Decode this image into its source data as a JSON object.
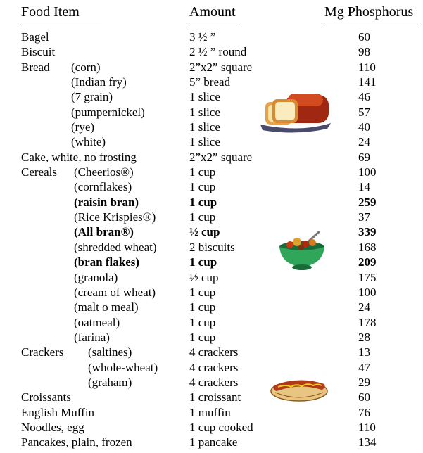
{
  "header": {
    "food": "Food Item",
    "amount": "Amount",
    "phos": "Mg Phosphorus"
  },
  "rows": [
    {
      "food": "Bagel",
      "sub": "",
      "amount": "3 ½ ”",
      "mg": "60",
      "bold": false
    },
    {
      "food": "Biscuit",
      "sub": "",
      "amount": "2 ½ ” round",
      "mg": "98",
      "bold": false
    },
    {
      "food": "Bread",
      "sub": "(corn)",
      "amount": "2”x2” square",
      "mg": "110",
      "bold": false
    },
    {
      "food": "",
      "sub": "(Indian fry)",
      "amount": "5” bread",
      "mg": "141",
      "bold": false
    },
    {
      "food": "",
      "sub": "(7 grain)",
      "amount": "1 slice",
      "mg": "46",
      "bold": false
    },
    {
      "food": "",
      "sub": "(pumpernickel)",
      "amount": "1 slice",
      "mg": "57",
      "bold": false
    },
    {
      "food": "",
      "sub": "(rye)",
      "amount": "1 slice",
      "mg": "40",
      "bold": false
    },
    {
      "food": "",
      "sub": "(white)",
      "amount": "1 slice",
      "mg": "24",
      "bold": false
    },
    {
      "food": "Cake, white, no frosting",
      "sub": "",
      "amount": "2”x2” square",
      "mg": "69",
      "bold": false
    },
    {
      "food": "Cereals",
      "sub": "(Cheerios®)",
      "amount": "1 cup",
      "mg": "100",
      "bold": false
    },
    {
      "food": "",
      "sub": "(cornflakes)",
      "amount": "1 cup",
      "mg": "14",
      "bold": false
    },
    {
      "food": "",
      "sub": "(raisin bran)",
      "amount": "1 cup",
      "mg": "259",
      "bold": true
    },
    {
      "food": "",
      "sub": "(Rice Krispies®)",
      "amount": "1 cup",
      "mg": "37",
      "bold": false
    },
    {
      "food": "",
      "sub": "(All bran®)",
      "amount": "½ cup",
      "mg": "339",
      "bold": true
    },
    {
      "food": "",
      "sub": "(shredded wheat)",
      "amount": "2 biscuits",
      "mg": "168",
      "bold": false
    },
    {
      "food": "",
      "sub": "(bran flakes)",
      "amount": "1 cup",
      "mg": "209",
      "bold": true
    },
    {
      "food": "",
      "sub": "(granola)",
      "amount": "½ cup",
      "mg": "175",
      "bold": false
    },
    {
      "food": "",
      "sub": "(cream of wheat)",
      "amount": "1 cup",
      "mg": "100",
      "bold": false
    },
    {
      "food": "",
      "sub": "(malt o meal)",
      "amount": "1 cup",
      "mg": "24",
      "bold": false
    },
    {
      "food": "",
      "sub": "(oatmeal)",
      "amount": "1 cup",
      "mg": "178",
      "bold": false
    },
    {
      "food": "",
      "sub": "(farina)",
      "amount": "1 cup",
      "mg": "28",
      "bold": false
    },
    {
      "food": "Crackers",
      "sub": "(saltines)",
      "amount": "4 crackers",
      "mg": "13",
      "bold": false
    },
    {
      "food": "",
      "sub": "(whole-wheat)",
      "amount": "4 crackers",
      "mg": "47",
      "bold": false
    },
    {
      "food": "",
      "sub": "(graham)",
      "amount": "4 crackers",
      "mg": "29",
      "bold": false
    },
    {
      "food": "Croissants",
      "sub": "",
      "amount": "1 croissant",
      "mg": "60",
      "bold": false
    },
    {
      "food": "English Muffin",
      "sub": "",
      "amount": "1 muffin",
      "mg": "76",
      "bold": false
    },
    {
      "food": "Noodles, egg",
      "sub": "",
      "amount": "1 cup cooked",
      "mg": "110",
      "bold": false
    },
    {
      "food": "Pancakes, plain, frozen",
      "sub": "",
      "amount": "1 pancake",
      "mg": "134",
      "bold": false
    }
  ],
  "icons": {
    "bread": "bread-loaf-icon",
    "cereal": "cereal-bowl-icon",
    "hotdog": "hot-dog-icon"
  }
}
